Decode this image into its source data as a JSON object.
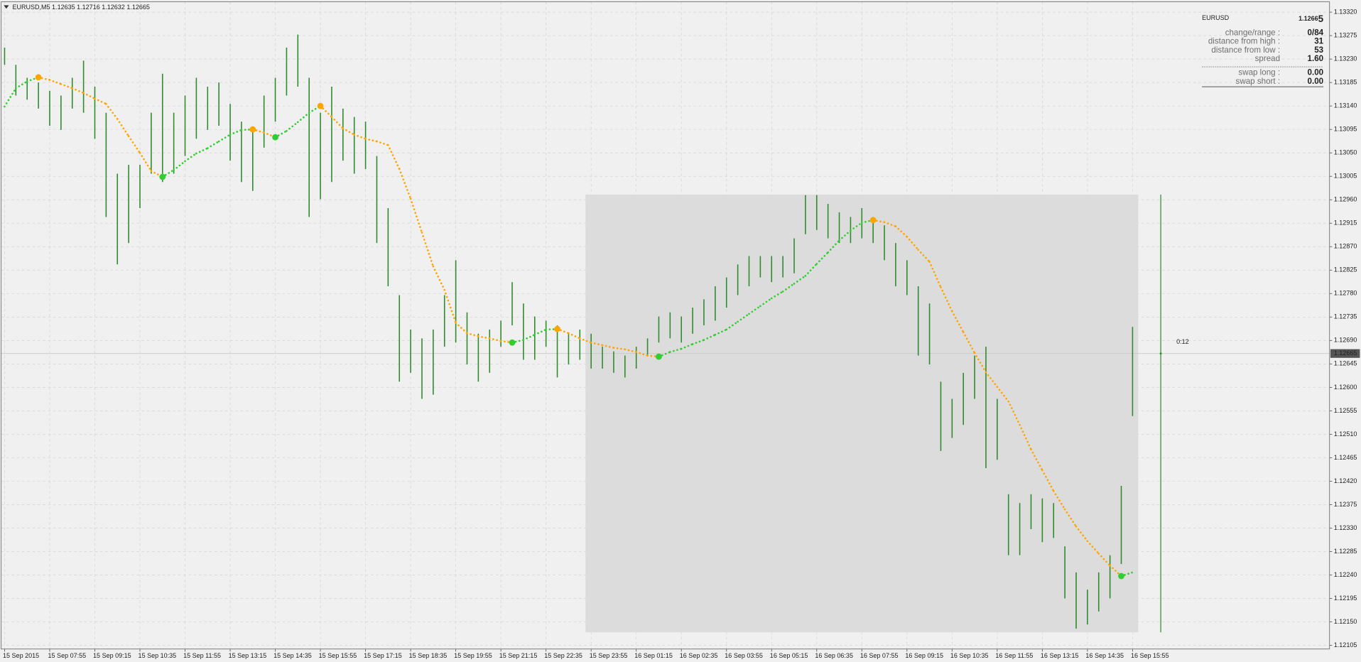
{
  "chart_data": {
    "type": "ohlc",
    "title": "EURUSD,M5  1.12635 1.12716 1.12632 1.12665",
    "categories": [
      "15 Sep 2015",
      null,
      null,
      null,
      "15 Sep 07:55",
      null,
      null,
      null,
      "15 Sep 09:15",
      null,
      null,
      null,
      "15 Sep 10:35",
      null,
      null,
      null,
      "15 Sep 11:55",
      null,
      null,
      null,
      "15 Sep 13:15",
      null,
      null,
      null,
      "15 Sep 14:35",
      null,
      null,
      null,
      "15 Sep 15:55",
      null,
      null,
      null,
      "15 Sep 17:15",
      null,
      null,
      null,
      "15 Sep 18:35",
      null,
      null,
      null,
      "15 Sep 19:55",
      null,
      null,
      null,
      "15 Sep 21:15",
      null,
      null,
      null,
      "15 Sep 22:35",
      null,
      null,
      null,
      "15 Sep 23:55",
      null,
      null,
      null,
      "16 Sep 01:15",
      null,
      null,
      null,
      "16 Sep 02:35",
      null,
      null,
      null,
      "16 Sep 03:55",
      null,
      null,
      null,
      "16 Sep 05:15",
      null,
      null,
      null,
      "16 Sep 06:35",
      null,
      null,
      null,
      "16 Sep 07:55",
      null,
      null,
      null,
      "16 Sep 09:15",
      null,
      null,
      null,
      "16 Sep 10:35",
      null,
      null,
      null,
      "16 Sep 11:55",
      null,
      null,
      null,
      "16 Sep 13:15",
      null,
      null,
      null,
      "16 Sep 14:35",
      null,
      null,
      null,
      "16 Sep 15:55"
    ],
    "high": [
      1.13252,
      1.13219,
      1.13194,
      1.13185,
      1.13169,
      1.1316,
      1.13194,
      1.13227,
      1.13177,
      1.13127,
      1.1301,
      1.13027,
      1.13027,
      1.13127,
      1.13202,
      1.13127,
      1.1316,
      1.13194,
      1.13177,
      1.13185,
      1.13144,
      1.1311,
      1.13094,
      1.1316,
      1.13194,
      1.13252,
      1.13277,
      1.13194,
      1.13127,
      1.13177,
      1.13135,
      1.13119,
      1.1311,
      1.13044,
      1.12944,
      1.12777,
      1.12711,
      1.12694,
      1.12711,
      1.12777,
      1.12844,
      1.12744,
      1.12703,
      1.12711,
      1.12728,
      1.12802,
      1.12761,
      1.12736,
      1.12728,
      1.12719,
      1.12703,
      1.12711,
      1.12703,
      1.12678,
      1.12669,
      1.12661,
      1.12678,
      1.12694,
      1.12736,
      1.12744,
      1.12736,
      1.12753,
      1.12769,
      1.12794,
      1.12811,
      1.12836,
      1.12852,
      1.12852,
      1.12852,
      1.12852,
      1.12886,
      1.12969,
      1.12969,
      1.12952,
      1.12936,
      1.12927,
      1.12944,
      1.12927,
      1.12911,
      1.12877,
      1.12844,
      1.12794,
      1.12761,
      1.12611,
      1.12578,
      1.12628,
      1.12661,
      1.12678,
      1.12578,
      1.12395,
      1.12378,
      1.12395,
      1.12387,
      1.12378,
      1.12295,
      1.12245,
      1.12212,
      1.12245,
      1.12278,
      1.12411,
      1.12716
    ],
    "low": [
      1.13219,
      1.1316,
      1.13152,
      1.13135,
      1.13102,
      1.13094,
      1.13135,
      1.13127,
      1.13077,
      1.12927,
      1.12836,
      1.12877,
      1.12944,
      1.1301,
      1.12994,
      1.1301,
      1.13044,
      1.13077,
      1.13094,
      1.13102,
      1.13035,
      1.12994,
      1.12977,
      1.1306,
      1.1311,
      1.1316,
      1.13177,
      1.12927,
      1.12961,
      1.12994,
      1.13035,
      1.1301,
      1.13019,
      1.12877,
      1.12794,
      1.12611,
      1.12628,
      1.12578,
      1.12586,
      1.12678,
      1.12686,
      1.12644,
      1.12611,
      1.12628,
      1.12678,
      1.12719,
      1.12653,
      1.12653,
      1.12678,
      1.12619,
      1.12644,
      1.12653,
      1.12636,
      1.12636,
      1.12628,
      1.12619,
      1.12636,
      1.12661,
      1.12686,
      1.12694,
      1.12686,
      1.12703,
      1.12719,
      1.12728,
      1.12753,
      1.12777,
      1.12794,
      1.12811,
      1.12802,
      1.12811,
      1.12819,
      1.12894,
      1.12902,
      1.12886,
      1.12877,
      1.12877,
      1.12886,
      1.12877,
      1.12844,
      1.12794,
      1.12777,
      1.12661,
      1.12644,
      1.12478,
      1.12503,
      1.12528,
      1.12578,
      1.12445,
      1.12461,
      1.12278,
      1.12278,
      1.12328,
      1.12303,
      1.12311,
      1.12195,
      1.12137,
      1.12145,
      1.1217,
      1.12195,
      1.12261,
      1.12545
    ],
    "color": "#2e8b2e",
    "ma": {
      "values": [
        1.13139,
        1.13174,
        1.13187,
        1.13195,
        1.1319,
        1.13182,
        1.13174,
        1.13165,
        1.13154,
        1.13144,
        1.13115,
        1.13082,
        1.1305,
        1.13015,
        1.13004,
        1.13017,
        1.13034,
        1.13049,
        1.13059,
        1.13072,
        1.13085,
        1.13094,
        1.13095,
        1.13089,
        1.1308,
        1.13092,
        1.13109,
        1.13127,
        1.1314,
        1.13119,
        1.13097,
        1.13085,
        1.13077,
        1.13072,
        1.13065,
        1.13019,
        1.12962,
        1.12897,
        1.12832,
        1.12787,
        1.12724,
        1.12704,
        1.12698,
        1.12694,
        1.12689,
        1.12686,
        1.12691,
        1.12701,
        1.12711,
        1.12712,
        1.12704,
        1.12694,
        1.12686,
        1.12681,
        1.12676,
        1.12673,
        1.12668,
        1.12661,
        1.12659,
        1.12668,
        1.12674,
        1.12683,
        1.12691,
        1.12701,
        1.12711,
        1.12726,
        1.12741,
        1.12756,
        1.12771,
        1.12784,
        1.12799,
        1.12814,
        1.12837,
        1.12859,
        1.12882,
        1.12901,
        1.12916,
        1.12921,
        1.12917,
        1.12909,
        1.12889,
        1.12864,
        1.12841,
        1.12792,
        1.12746,
        1.12706,
        1.12666,
        1.12629,
        1.12601,
        1.12573,
        1.12528,
        1.12481,
        1.12441,
        1.12401,
        1.12366,
        1.12333,
        1.12305,
        1.12281,
        1.12258,
        1.12238,
        1.12245
      ],
      "rising_color": "#32cd32",
      "falling_color": "#ffa500"
    },
    "ylim": [
      1.12098,
      1.1334
    ],
    "yticks": [
      {
        "value": 1.1332,
        "label": "1.13320"
      },
      1.13275,
      {
        "value": 1.1323,
        "label": "1.13230"
      },
      1.13185,
      {
        "value": 1.1314,
        "label": "1.13140"
      },
      1.13095,
      {
        "value": 1.1305,
        "label": "1.13050"
      },
      1.13005,
      {
        "value": 1.1296,
        "label": "1.12960"
      },
      1.12915,
      {
        "value": 1.1287,
        "label": "1.12870"
      },
      1.12825,
      {
        "value": 1.1278,
        "label": "1.12780"
      },
      1.12735,
      {
        "value": 1.1269,
        "label": "1.12690"
      },
      1.12645,
      {
        "value": 1.126,
        "label": "1.12600"
      },
      1.12555,
      {
        "value": 1.1251,
        "label": "1.12510"
      },
      1.12465,
      {
        "value": 1.1242,
        "label": "1.12420"
      },
      1.12375,
      {
        "value": 1.1233,
        "label": "1.12330"
      },
      1.12285,
      {
        "value": 1.1224,
        "label": "1.12240"
      },
      1.12195,
      {
        "value": 1.1215,
        "label": "1.12150"
      },
      1.12105
    ],
    "grid": true,
    "current_price": {
      "value": 1.12665,
      "label": "1.12665"
    },
    "box": {
      "from": 52,
      "to": 100,
      "high": 1.1297,
      "low": 1.1213,
      "color": "#dcdcdc"
    },
    "timer": "0:12"
  },
  "info_panel": {
    "symbol": "EURUSD",
    "price": [
      "1.1266",
      "5"
    ],
    "price_color": "#3cb371",
    "rows": [
      {
        "label": "change/range :",
        "value": "0/84",
        "color": "#ffa500"
      },
      {
        "label": "distance from high :",
        "value": "31",
        "color": "#3cb371"
      },
      {
        "label": "distance from low :",
        "value": "53",
        "color": "#3cb371"
      },
      {
        "label": "spread",
        "value": "1.60",
        "color": "#3cb371"
      },
      {
        "label": "swap long :",
        "value": "0.00",
        "color": "#3cb371"
      },
      {
        "label": "swap short :",
        "value": "0.00",
        "color": "#3cb371"
      }
    ]
  }
}
